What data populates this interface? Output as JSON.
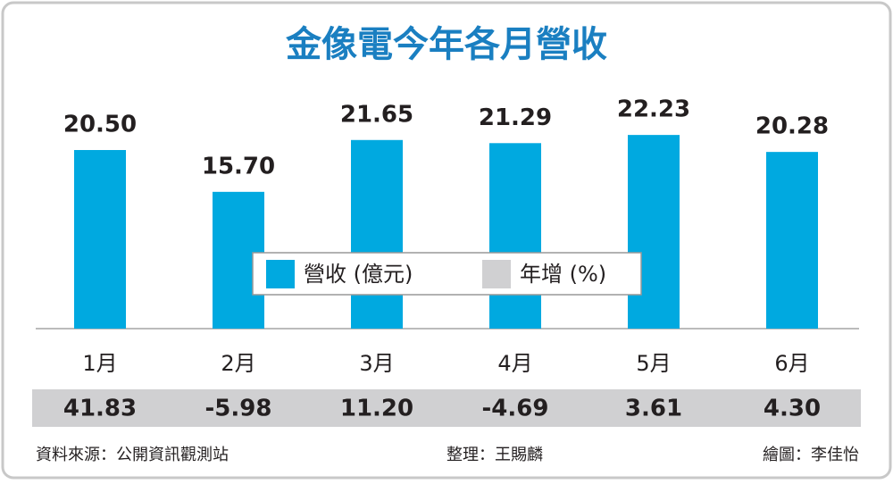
{
  "chart_data": {
    "type": "bar",
    "title": "金像電今年各月營收",
    "categories": [
      "1月",
      "2月",
      "3月",
      "4月",
      "5月",
      "6月"
    ],
    "series": [
      {
        "name": "營收 (億元)",
        "color": "#00a9e0",
        "values": [
          20.5,
          15.7,
          21.65,
          21.29,
          22.23,
          20.28
        ],
        "value_labels": [
          "20.50",
          "15.70",
          "21.65",
          "21.29",
          "22.23",
          "20.28"
        ]
      },
      {
        "name": "年增 (%)",
        "color": "#d0d0d2",
        "values": [
          41.83,
          -5.98,
          11.2,
          -4.69,
          3.61,
          4.3
        ],
        "value_labels": [
          "41.83",
          "-5.98",
          "11.20",
          "-4.69",
          "3.61",
          "4.30"
        ]
      }
    ],
    "source": "資料來源：公開資訊觀測站",
    "editor": "整理：王賜麟",
    "graphic": "繪圖：李佳怡"
  }
}
